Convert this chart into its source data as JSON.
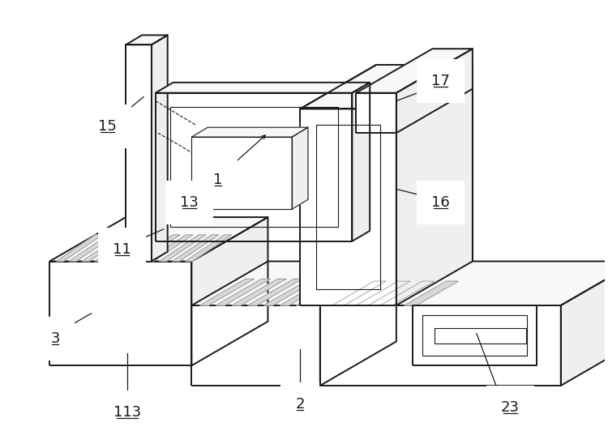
{
  "bg_color": "#ffffff",
  "lc": "#1a1a1a",
  "lw": 1.4,
  "tlw": 0.8,
  "fill_white": "#ffffff",
  "fill_light": "#f8f8f8",
  "fill_mid": "#efefef",
  "fill_dark": "#e2e2e2",
  "slat_color": "#888888",
  "annotation_lw": 0.9,
  "annotation_fs": 13
}
